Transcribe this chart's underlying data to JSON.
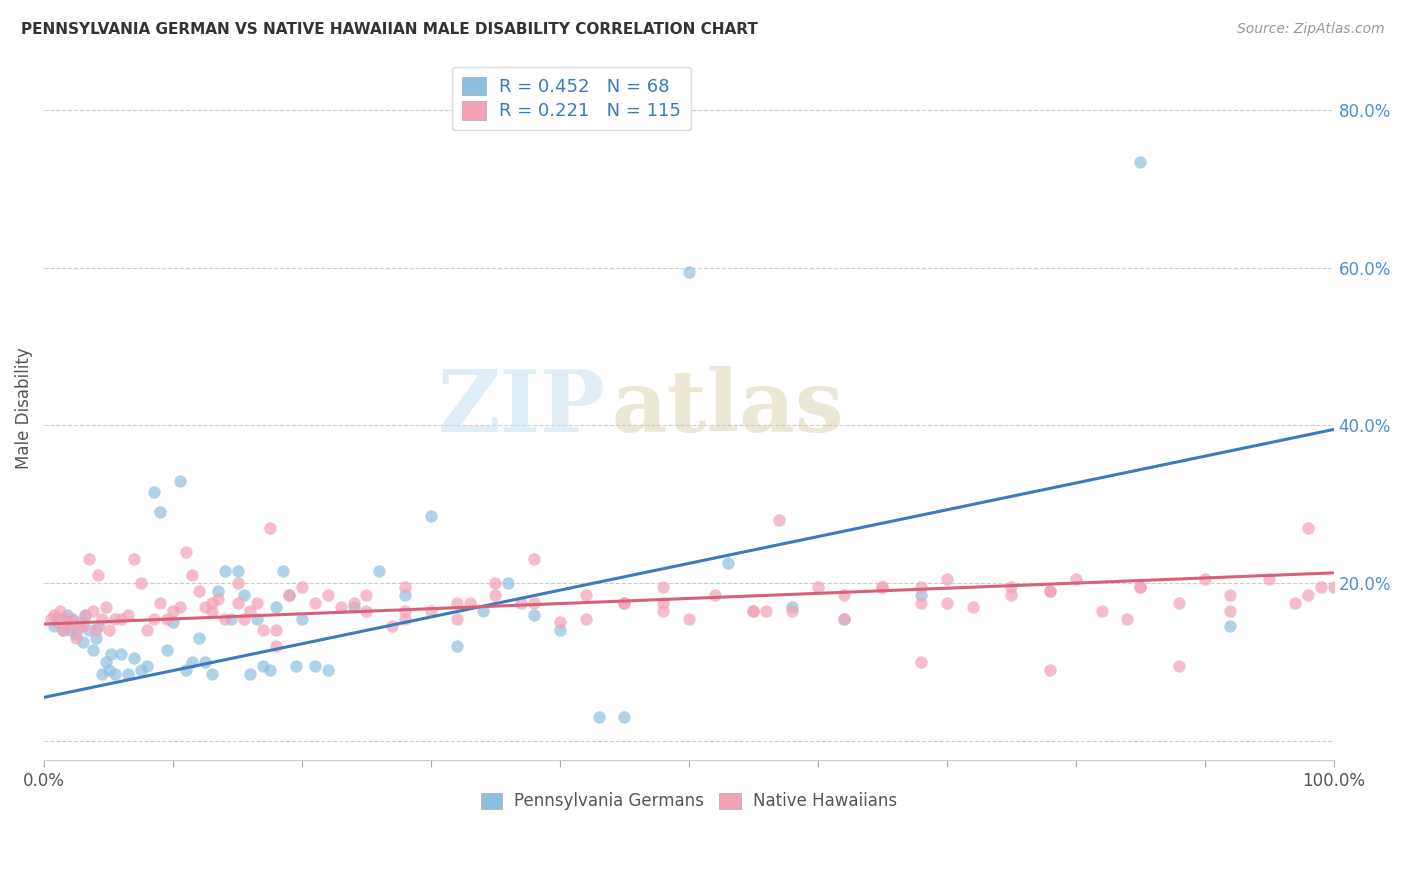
{
  "title": "PENNSYLVANIA GERMAN VS NATIVE HAWAIIAN MALE DISABILITY CORRELATION CHART",
  "source": "Source: ZipAtlas.com",
  "ylabel": "Male Disability",
  "watermark_zip": "ZIP",
  "watermark_atlas": "atlas",
  "legend_blue_label": "Pennsylvania Germans",
  "legend_pink_label": "Native Hawaiians",
  "legend_blue_R": "R = 0.452",
  "legend_blue_N": "N = 68",
  "legend_pink_R": "R = 0.221",
  "legend_pink_N": "N = 115",
  "blue_color": "#8fbfdf",
  "pink_color": "#f4a0b5",
  "blue_line_color": "#3a7bbf",
  "pink_line_color": "#d9607a",
  "legend_text_color": "#3a7bbf",
  "yticks": [
    0.0,
    0.2,
    0.4,
    0.6,
    0.8
  ],
  "ytick_labels": [
    "",
    "20.0%",
    "40.0%",
    "60.0%",
    "80.0%"
  ],
  "xlim": [
    0.0,
    1.0
  ],
  "ylim": [
    -0.025,
    0.87
  ],
  "blue_line_x": [
    0.0,
    1.0
  ],
  "blue_line_y": [
    0.055,
    0.395
  ],
  "pink_line_x": [
    0.0,
    1.0
  ],
  "pink_line_y": [
    0.148,
    0.213
  ],
  "blue_points_x": [
    0.008,
    0.012,
    0.015,
    0.018,
    0.02,
    0.022,
    0.025,
    0.028,
    0.03,
    0.032,
    0.035,
    0.038,
    0.04,
    0.042,
    0.045,
    0.048,
    0.05,
    0.052,
    0.055,
    0.06,
    0.065,
    0.07,
    0.075,
    0.08,
    0.085,
    0.09,
    0.095,
    0.1,
    0.105,
    0.11,
    0.115,
    0.12,
    0.125,
    0.13,
    0.135,
    0.14,
    0.145,
    0.15,
    0.155,
    0.16,
    0.165,
    0.17,
    0.175,
    0.18,
    0.185,
    0.19,
    0.195,
    0.2,
    0.21,
    0.22,
    0.24,
    0.26,
    0.28,
    0.3,
    0.32,
    0.34,
    0.36,
    0.38,
    0.4,
    0.43,
    0.45,
    0.5,
    0.53,
    0.58,
    0.62,
    0.68,
    0.85,
    0.92
  ],
  "blue_points_y": [
    0.145,
    0.155,
    0.14,
    0.16,
    0.14,
    0.155,
    0.135,
    0.15,
    0.125,
    0.16,
    0.14,
    0.115,
    0.13,
    0.145,
    0.085,
    0.1,
    0.09,
    0.11,
    0.085,
    0.11,
    0.085,
    0.105,
    0.09,
    0.095,
    0.315,
    0.29,
    0.115,
    0.15,
    0.33,
    0.09,
    0.1,
    0.13,
    0.1,
    0.085,
    0.19,
    0.215,
    0.155,
    0.215,
    0.185,
    0.085,
    0.155,
    0.095,
    0.09,
    0.17,
    0.215,
    0.185,
    0.095,
    0.155,
    0.095,
    0.09,
    0.17,
    0.215,
    0.185,
    0.285,
    0.12,
    0.165,
    0.2,
    0.16,
    0.14,
    0.03,
    0.03,
    0.595,
    0.225,
    0.17,
    0.155,
    0.185,
    0.735,
    0.145
  ],
  "pink_points_x": [
    0.005,
    0.008,
    0.01,
    0.012,
    0.015,
    0.018,
    0.02,
    0.022,
    0.025,
    0.028,
    0.03,
    0.032,
    0.035,
    0.038,
    0.04,
    0.042,
    0.045,
    0.048,
    0.05,
    0.055,
    0.06,
    0.065,
    0.07,
    0.075,
    0.08,
    0.085,
    0.09,
    0.095,
    0.1,
    0.105,
    0.11,
    0.115,
    0.12,
    0.125,
    0.13,
    0.135,
    0.14,
    0.15,
    0.155,
    0.16,
    0.165,
    0.17,
    0.175,
    0.18,
    0.19,
    0.2,
    0.21,
    0.22,
    0.23,
    0.24,
    0.25,
    0.27,
    0.28,
    0.3,
    0.32,
    0.33,
    0.35,
    0.37,
    0.38,
    0.4,
    0.42,
    0.45,
    0.48,
    0.5,
    0.52,
    0.55,
    0.57,
    0.6,
    0.62,
    0.65,
    0.68,
    0.7,
    0.72,
    0.75,
    0.78,
    0.8,
    0.82,
    0.85,
    0.88,
    0.9,
    0.92,
    0.95,
    0.97,
    0.98,
    0.99,
    1.0,
    0.13,
    0.25,
    0.35,
    0.45,
    0.55,
    0.65,
    0.75,
    0.85,
    0.15,
    0.28,
    0.42,
    0.56,
    0.7,
    0.84,
    0.38,
    0.48,
    0.58,
    0.68,
    0.78,
    0.88,
    0.98,
    0.32,
    0.62,
    0.92,
    0.18,
    0.68,
    0.48,
    0.78,
    0.28
  ],
  "pink_points_y": [
    0.155,
    0.16,
    0.15,
    0.165,
    0.14,
    0.155,
    0.145,
    0.155,
    0.13,
    0.145,
    0.145,
    0.16,
    0.23,
    0.165,
    0.14,
    0.21,
    0.155,
    0.17,
    0.14,
    0.155,
    0.155,
    0.16,
    0.23,
    0.2,
    0.14,
    0.155,
    0.175,
    0.155,
    0.165,
    0.17,
    0.24,
    0.21,
    0.19,
    0.17,
    0.165,
    0.18,
    0.155,
    0.2,
    0.155,
    0.165,
    0.175,
    0.14,
    0.27,
    0.14,
    0.185,
    0.195,
    0.175,
    0.185,
    0.17,
    0.175,
    0.185,
    0.145,
    0.195,
    0.165,
    0.155,
    0.175,
    0.185,
    0.175,
    0.23,
    0.15,
    0.185,
    0.175,
    0.195,
    0.155,
    0.185,
    0.165,
    0.28,
    0.195,
    0.185,
    0.195,
    0.175,
    0.205,
    0.17,
    0.195,
    0.19,
    0.205,
    0.165,
    0.195,
    0.175,
    0.205,
    0.185,
    0.205,
    0.175,
    0.185,
    0.195,
    0.195,
    0.175,
    0.165,
    0.2,
    0.175,
    0.165,
    0.195,
    0.185,
    0.195,
    0.175,
    0.155,
    0.155,
    0.165,
    0.175,
    0.155,
    0.175,
    0.175,
    0.165,
    0.195,
    0.09,
    0.095,
    0.27,
    0.175,
    0.155,
    0.165,
    0.12,
    0.1,
    0.165,
    0.19,
    0.165
  ],
  "background_color": "#ffffff",
  "grid_color": "#cccccc"
}
